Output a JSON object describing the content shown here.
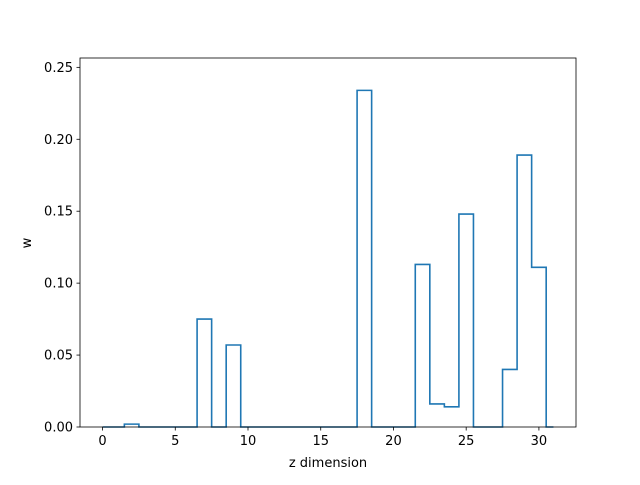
{
  "chart_data": {
    "type": "step",
    "xlabel": "z dimension",
    "ylabel": "w",
    "xlim": [
      -1.55,
      32.55
    ],
    "ylim": [
      0,
      0.2565
    ],
    "xticks": [
      0,
      5,
      10,
      15,
      20,
      25,
      30
    ],
    "xtick_labels": [
      "0",
      "5",
      "10",
      "15",
      "20",
      "25",
      "30"
    ],
    "yticks": [
      0.0,
      0.05,
      0.1,
      0.15,
      0.2,
      0.25
    ],
    "ytick_labels": [
      "0.00",
      "0.05",
      "0.10",
      "0.15",
      "0.20",
      "0.25"
    ],
    "grid": false,
    "series_color": "#1f77b4",
    "x": [
      0,
      1,
      2,
      3,
      4,
      5,
      6,
      7,
      8,
      9,
      10,
      11,
      12,
      13,
      14,
      15,
      16,
      17,
      18,
      19,
      20,
      21,
      22,
      23,
      24,
      25,
      26,
      27,
      28,
      29,
      30,
      31
    ],
    "values": [
      0,
      0,
      0.002,
      0,
      0,
      0,
      0,
      0.075,
      0,
      0.057,
      0,
      0,
      0,
      0,
      0,
      0,
      0,
      0,
      0.234,
      0,
      0,
      0,
      0.113,
      0.016,
      0.014,
      0.148,
      0,
      0,
      0.04,
      0.189,
      0.111,
      0
    ]
  }
}
